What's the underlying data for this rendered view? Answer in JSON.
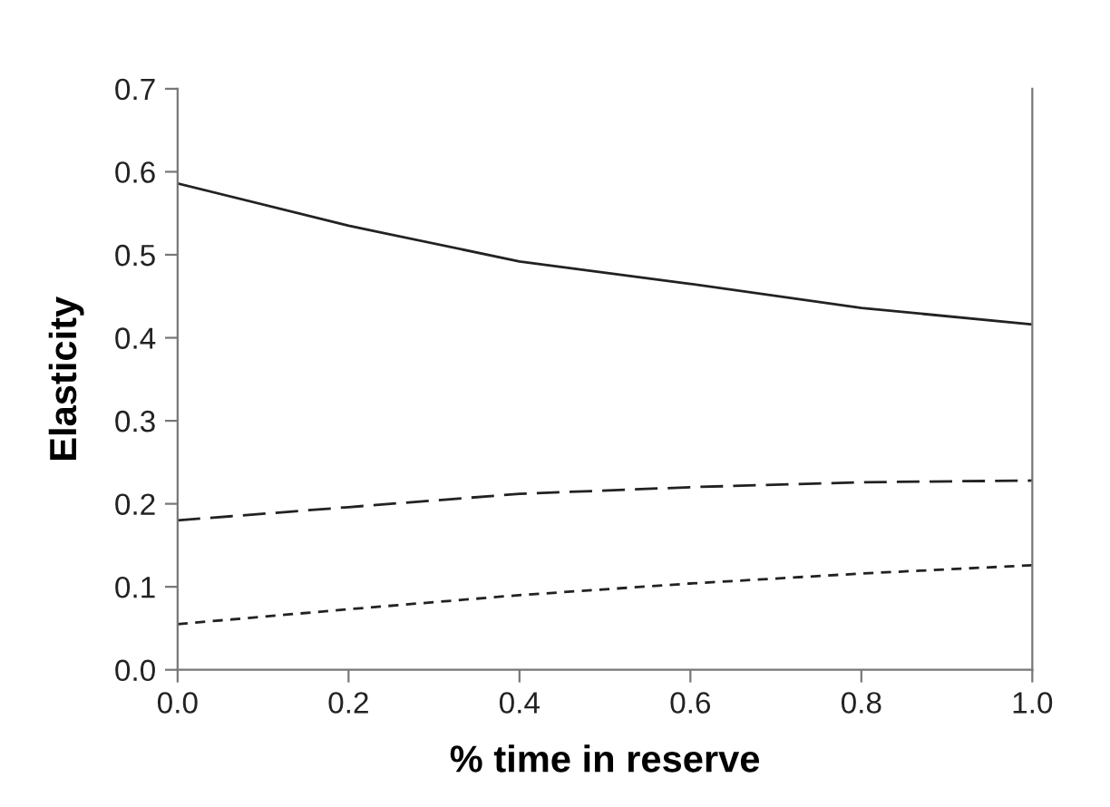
{
  "chart_data": {
    "type": "line",
    "xlabel": "% time in reserve",
    "ylabel": "Elasticity",
    "x": [
      0,
      0.2,
      0.4,
      0.6,
      0.8,
      1.0
    ],
    "series": [
      {
        "color": "#222222",
        "line_style": "solid",
        "values": [
          0.586,
          0.535,
          0.492,
          0.465,
          0.436,
          0.416
        ]
      },
      {
        "color": "#222222",
        "line_style": "dashed",
        "values": [
          0.18,
          0.196,
          0.212,
          0.22,
          0.226,
          0.228
        ]
      },
      {
        "color": "#222222",
        "line_style": "dotted",
        "values": [
          0.055,
          0.073,
          0.09,
          0.104,
          0.116,
          0.126
        ]
      }
    ],
    "xlim": [
      0,
      1.0
    ],
    "xticks": [
      {
        "value": 0,
        "label": "0.0"
      },
      0.2,
      0.4,
      0.6,
      0.8,
      {
        "value": 1.0,
        "label": "1.0"
      }
    ],
    "ylim": [
      0,
      0.7
    ],
    "yticks": [
      {
        "value": 0,
        "label": "0.0"
      },
      0.1,
      0.2,
      0.3,
      0.4,
      0.5,
      0.6,
      0.7
    ],
    "grid": false,
    "marker": "none"
  }
}
